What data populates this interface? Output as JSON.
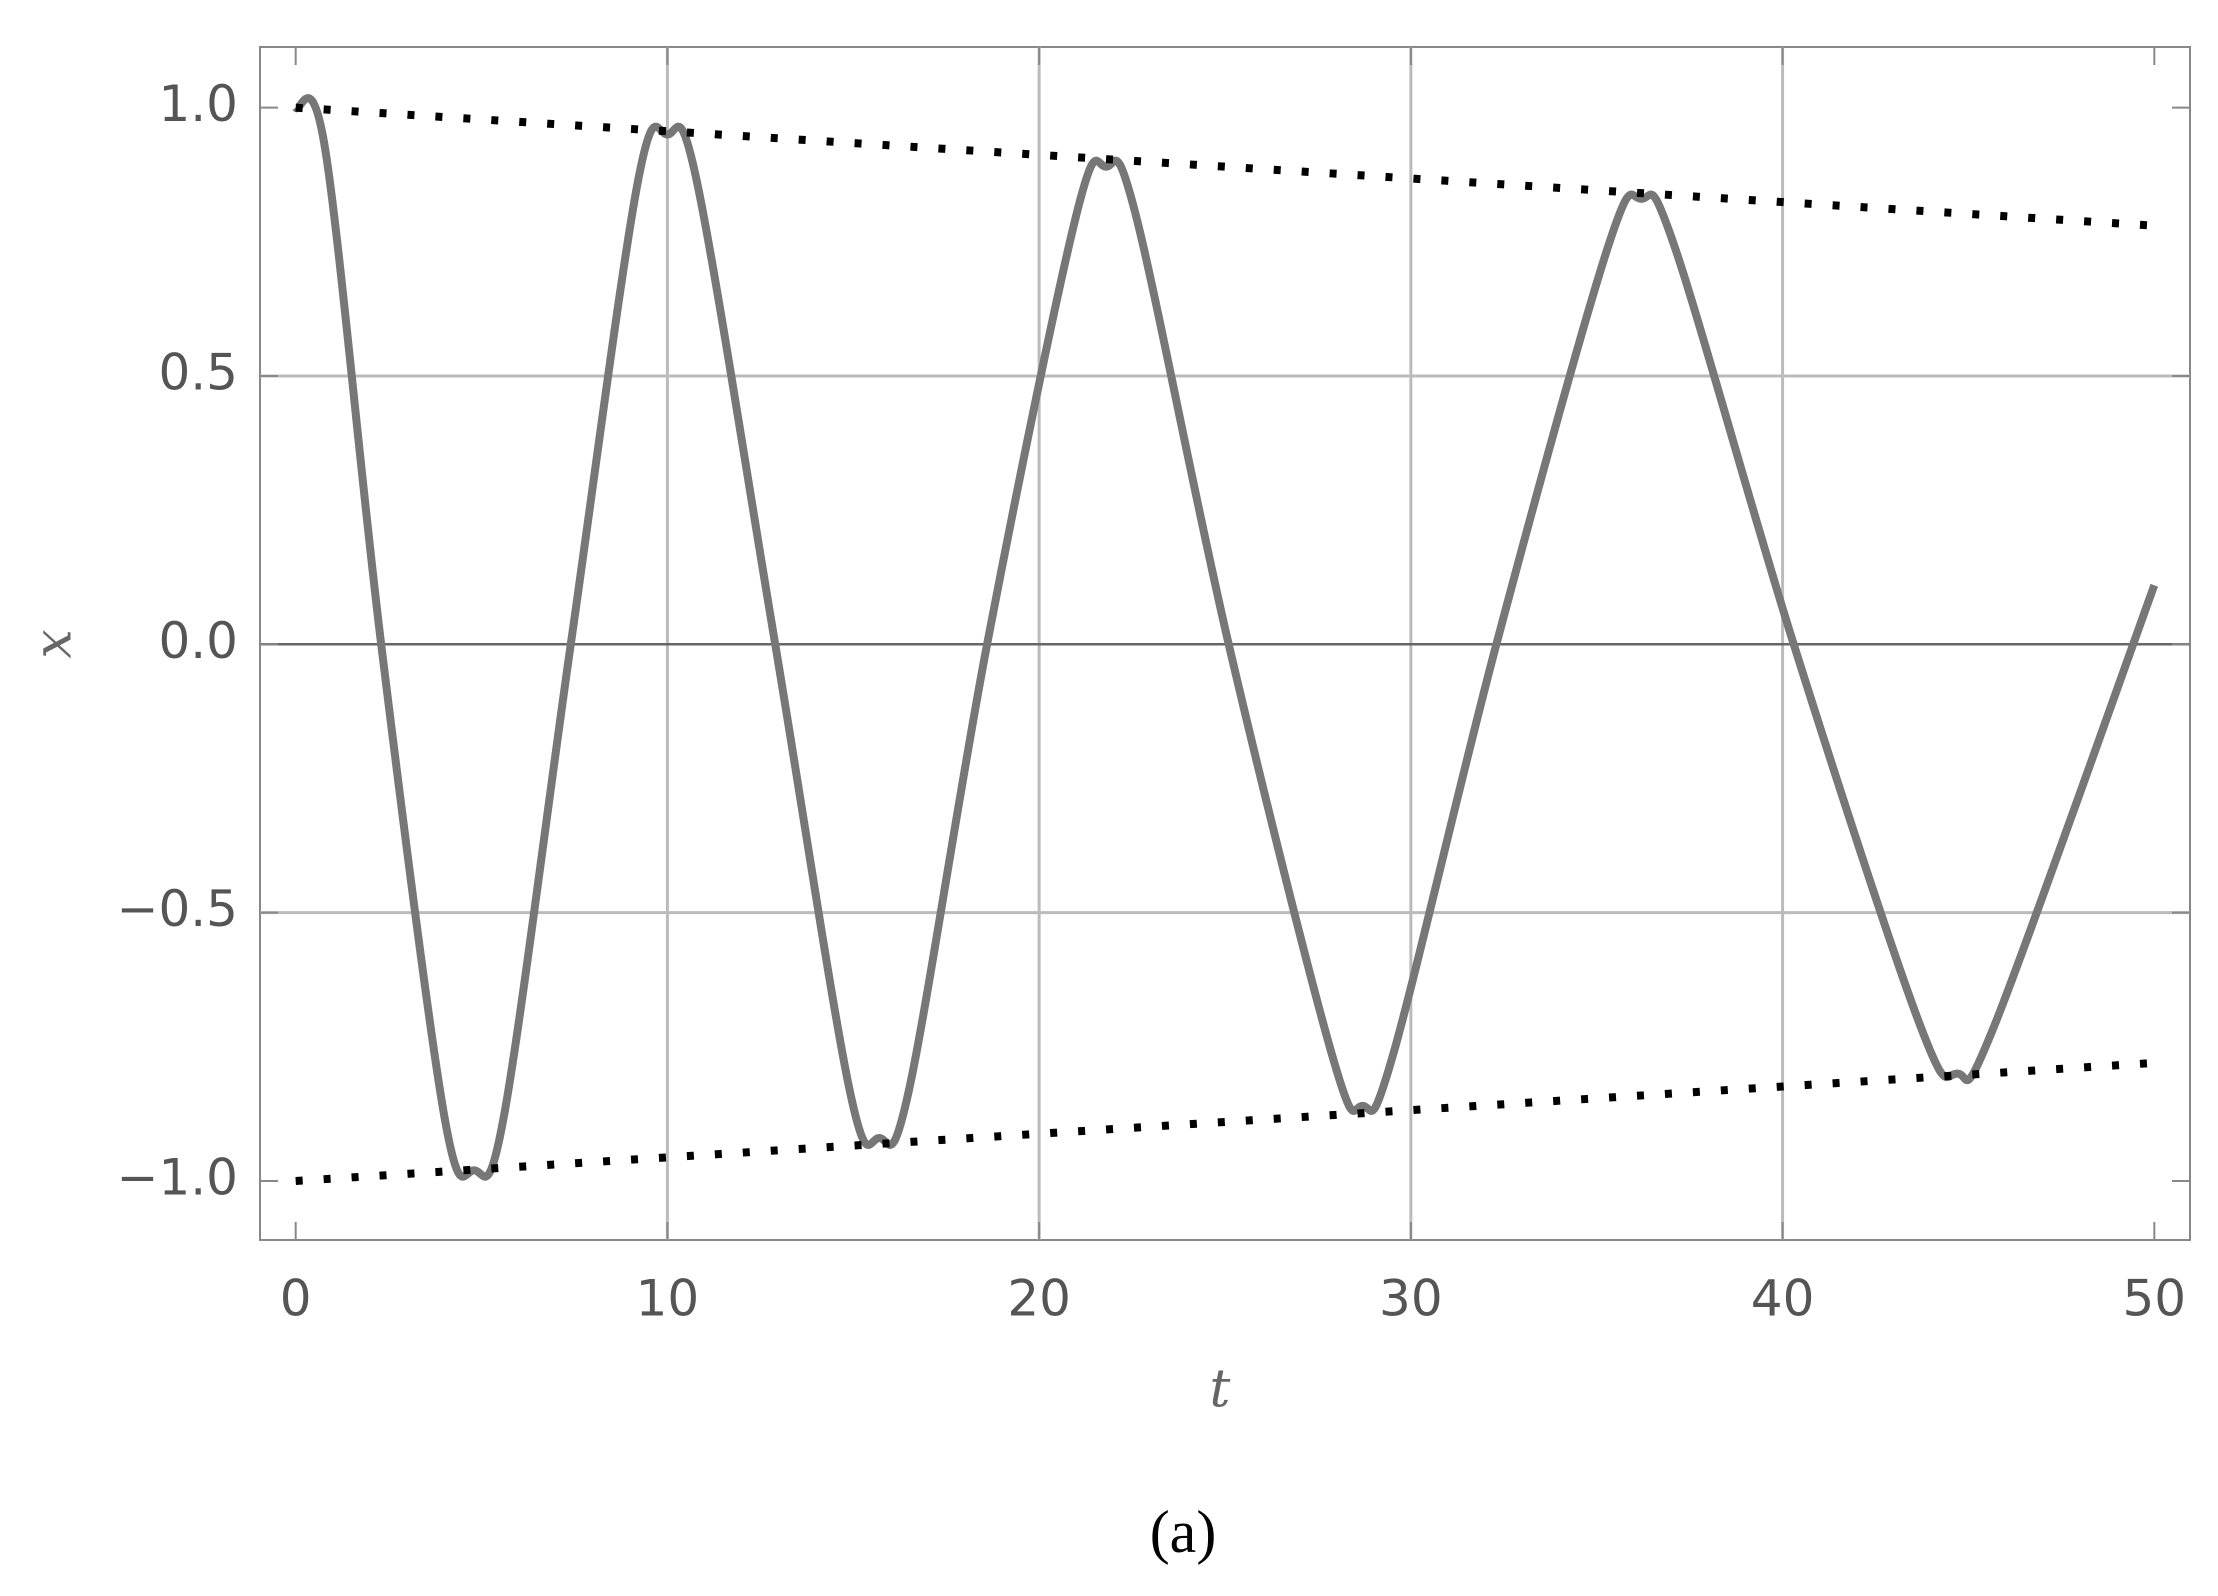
{
  "chart_data": {
    "type": "line",
    "xlabel": "t",
    "ylabel": "x",
    "caption": "(a)",
    "xlim": [
      -0.96,
      50.96
    ],
    "ylim": [
      -1.11,
      1.113
    ],
    "xticks": [
      0,
      10,
      20,
      30,
      40,
      50
    ],
    "yticks": [
      {
        "value": -1,
        "label": "−1.0"
      },
      {
        "value": -0.5,
        "label": "−0.5"
      },
      {
        "value": 0,
        "label": "0.0"
      },
      {
        "value": 0.5,
        "label": "0.5"
      },
      {
        "value": 1,
        "label": "1.0"
      }
    ],
    "grid_x": [
      10,
      20,
      30,
      40
    ],
    "grid_y": [
      -0.5,
      0.5
    ],
    "grid": true,
    "series": [
      {
        "color": "#777777",
        "style": "solid",
        "x": [
          0,
          0.8,
          2.3,
          4.0,
          4.8,
          5.6,
          7.4,
          9.2,
          10,
          10.8,
          12.9,
          14.9,
          15.7,
          16.5,
          18.6,
          21.0,
          21.8,
          22.6,
          25.1,
          27.9,
          28.7,
          29.5,
          32.3,
          35.3,
          36.2,
          37.1,
          40.3,
          43.7,
          44.7,
          45.7,
          50
        ],
        "values": [
          1.0,
          0.92,
          0,
          -0.88,
          -0.98,
          -0.88,
          0,
          0.86,
          0.95,
          0.86,
          0,
          -0.83,
          -0.92,
          -0.83,
          0,
          0.8,
          0.89,
          0.8,
          0,
          -0.77,
          -0.86,
          -0.77,
          0,
          0.74,
          0.83,
          0.74,
          0,
          -0.71,
          -0.8,
          -0.71,
          0.11
        ]
      },
      {
        "color": "#000000",
        "style": "dotted",
        "x": [
          0,
          50
        ],
        "values": [
          1.0,
          0.78
        ]
      },
      {
        "color": "#000000",
        "style": "dotted",
        "x": [
          0,
          50
        ],
        "values": [
          -1.0,
          -0.78
        ]
      }
    ]
  }
}
